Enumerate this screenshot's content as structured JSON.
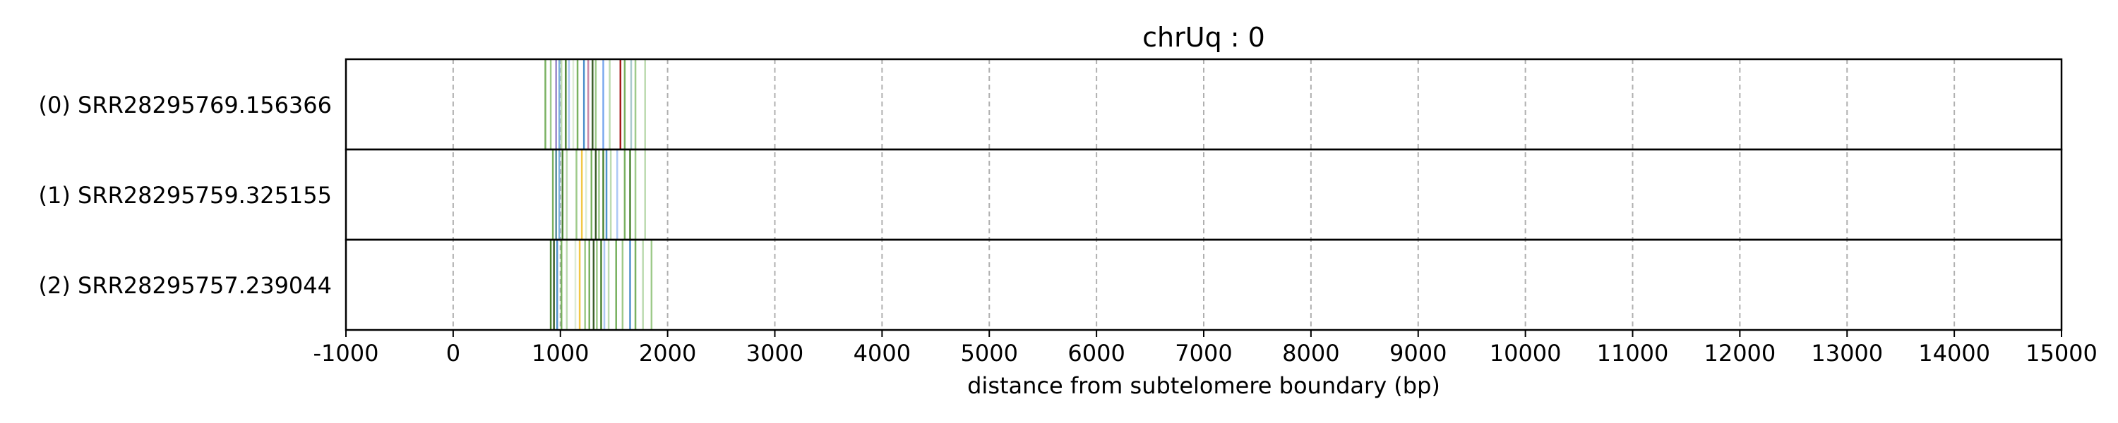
{
  "chart_data": {
    "type": "event-track",
    "title": "chrUq : 0",
    "xlabel": "distance from subtelomere boundary (bp)",
    "ylabel": "",
    "xlim": [
      -1000,
      15000
    ],
    "xticks": [
      "-1000",
      "0",
      "1000",
      "2000",
      "3000",
      "4000",
      "5000",
      "6000",
      "7000",
      "8000",
      "9000",
      "10000",
      "11000",
      "12000",
      "13000",
      "14000",
      "15000"
    ],
    "grid": "x-dashed",
    "colors": {
      "frame": "#000000",
      "grid": "#b0b0b0"
    },
    "tracks": [
      {
        "label": "(0) SRR28295769.156366",
        "marks": [
          {
            "x": 860,
            "color": "#6aa84f"
          },
          {
            "x": 910,
            "color": "#93c47d"
          },
          {
            "x": 960,
            "color": "#8e7cc3"
          },
          {
            "x": 990,
            "color": "#6fa8dc"
          },
          {
            "x": 1010,
            "color": "#b6d7a8"
          },
          {
            "x": 1050,
            "color": "#38761d"
          },
          {
            "x": 1080,
            "color": "#a4c2f4"
          },
          {
            "x": 1120,
            "color": "#d9ead3"
          },
          {
            "x": 1160,
            "color": "#6aa84f"
          },
          {
            "x": 1220,
            "color": "#3d85c6"
          },
          {
            "x": 1260,
            "color": "#c27ba0"
          },
          {
            "x": 1300,
            "color": "#274e13"
          },
          {
            "x": 1330,
            "color": "#93c47d"
          },
          {
            "x": 1400,
            "color": "#6d9eeb"
          },
          {
            "x": 1460,
            "color": "#b6d7a8"
          },
          {
            "x": 1560,
            "color": "#990000"
          },
          {
            "x": 1600,
            "color": "#6aa84f"
          },
          {
            "x": 1660,
            "color": "#a2c4c9"
          },
          {
            "x": 1700,
            "color": "#93c47d"
          },
          {
            "x": 1790,
            "color": "#b6d7a8"
          }
        ]
      },
      {
        "label": "(1) SRR28295759.325155",
        "marks": [
          {
            "x": 930,
            "color": "#6aa84f"
          },
          {
            "x": 960,
            "color": "#45818e"
          },
          {
            "x": 990,
            "color": "#6fa8dc"
          },
          {
            "x": 1020,
            "color": "#38761d"
          },
          {
            "x": 1060,
            "color": "#b6d7a8"
          },
          {
            "x": 1150,
            "color": "#93c47d"
          },
          {
            "x": 1200,
            "color": "#f1c232"
          },
          {
            "x": 1240,
            "color": "#d9ead3"
          },
          {
            "x": 1290,
            "color": "#6aa84f"
          },
          {
            "x": 1330,
            "color": "#274e13"
          },
          {
            "x": 1360,
            "color": "#93c47d"
          },
          {
            "x": 1400,
            "color": "#38761d"
          },
          {
            "x": 1430,
            "color": "#3d85c6"
          },
          {
            "x": 1470,
            "color": "#b6d7a8"
          },
          {
            "x": 1530,
            "color": "#a4c2f4"
          },
          {
            "x": 1600,
            "color": "#6aa84f"
          },
          {
            "x": 1650,
            "color": "#38761d"
          },
          {
            "x": 1700,
            "color": "#93c47d"
          },
          {
            "x": 1790,
            "color": "#b6d7a8"
          }
        ]
      },
      {
        "label": "(2) SRR28295757.239044",
        "marks": [
          {
            "x": 910,
            "color": "#38761d"
          },
          {
            "x": 940,
            "color": "#274e13"
          },
          {
            "x": 970,
            "color": "#3d85c6"
          },
          {
            "x": 1010,
            "color": "#6aa84f"
          },
          {
            "x": 1060,
            "color": "#b6d7a8"
          },
          {
            "x": 1140,
            "color": "#d9ead3"
          },
          {
            "x": 1180,
            "color": "#f1c232"
          },
          {
            "x": 1230,
            "color": "#93c47d"
          },
          {
            "x": 1270,
            "color": "#6aa84f"
          },
          {
            "x": 1310,
            "color": "#274e13"
          },
          {
            "x": 1340,
            "color": "#93c47d"
          },
          {
            "x": 1380,
            "color": "#38761d"
          },
          {
            "x": 1410,
            "color": "#a4c2f4"
          },
          {
            "x": 1450,
            "color": "#b6d7a8"
          },
          {
            "x": 1520,
            "color": "#6aa84f"
          },
          {
            "x": 1580,
            "color": "#93c47d"
          },
          {
            "x": 1650,
            "color": "#3d85c6"
          },
          {
            "x": 1700,
            "color": "#6aa84f"
          },
          {
            "x": 1770,
            "color": "#b6d7a8"
          },
          {
            "x": 1850,
            "color": "#93c47d"
          }
        ]
      }
    ]
  }
}
